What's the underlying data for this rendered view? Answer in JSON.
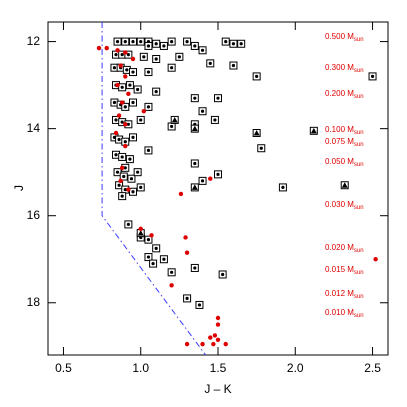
{
  "chart_data": {
    "type": "scatter",
    "xlabel": "J – K",
    "ylabel": "J",
    "xlim": [
      0.4,
      2.6
    ],
    "ylim": [
      11.55,
      19.2
    ],
    "y_inverted": true,
    "xticks": [
      0.5,
      {
        "value": 1.0,
        "label": "1.0"
      },
      1.5,
      {
        "value": 2.0,
        "label": "2.0"
      },
      2.5
    ],
    "yticks": [
      12,
      14,
      16,
      18
    ],
    "grid": false,
    "series": [
      {
        "marker": "square",
        "color": "#000000",
        "x": [
          0.85,
          0.9,
          0.95,
          1.0,
          1.05,
          1.1,
          1.2,
          1.3,
          1.55,
          1.6,
          1.65,
          1.05,
          1.15,
          1.35,
          1.4,
          0.84,
          0.88,
          0.92,
          1.02,
          1.1,
          1.25,
          1.45,
          0.83,
          0.87,
          0.91,
          0.95,
          1.05,
          1.2,
          1.6,
          1.75,
          2.5,
          0.84,
          0.88,
          0.93,
          0.98,
          1.1,
          1.35,
          1.5,
          0.83,
          0.87,
          0.9,
          0.95,
          1.05,
          1.4,
          1.48,
          0.84,
          0.88,
          0.92,
          1.0,
          1.2,
          1.35,
          0.83,
          0.86,
          0.9,
          0.95,
          1.78,
          1.05,
          0.84,
          0.88,
          0.93,
          1.35,
          0.9,
          0.85,
          0.89,
          0.94,
          0.98,
          1.5,
          1.92,
          1.4,
          0.86,
          0.9,
          0.95,
          1.0,
          0.88,
          0.92,
          1.0,
          1.05,
          1.1,
          1.05,
          1.08,
          1.15,
          1.2,
          1.35,
          1.53,
          1.3,
          1.38
        ],
        "y": [
          12.0,
          12.0,
          12.0,
          12.0,
          12.0,
          12.05,
          12.0,
          12.0,
          12.0,
          12.05,
          12.05,
          12.1,
          12.1,
          12.1,
          12.2,
          12.3,
          12.3,
          12.3,
          12.35,
          12.4,
          12.35,
          12.5,
          12.6,
          12.6,
          12.65,
          12.7,
          12.7,
          12.6,
          12.55,
          12.8,
          12.8,
          13.0,
          13.05,
          13.0,
          13.1,
          13.15,
          13.3,
          13.3,
          13.4,
          13.45,
          13.5,
          13.4,
          13.5,
          13.6,
          13.8,
          13.8,
          13.85,
          13.9,
          13.8,
          13.95,
          13.9,
          14.2,
          14.25,
          14.3,
          14.2,
          14.45,
          14.5,
          14.6,
          14.65,
          14.7,
          14.8,
          14.9,
          15.0,
          15.1,
          15.15,
          15.0,
          15.05,
          15.35,
          15.2,
          15.3,
          15.4,
          15.45,
          15.35,
          15.55,
          16.2,
          16.5,
          16.55,
          16.75,
          16.95,
          17.1,
          17.0,
          17.3,
          17.2,
          17.35,
          17.9,
          18.05
        ]
      },
      {
        "marker": "triangle",
        "color": "#000000",
        "x": [
          1.22,
          1.35,
          1.75,
          2.12,
          2.32,
          1.35,
          1.0
        ],
        "y": [
          13.8,
          14.0,
          14.1,
          14.05,
          15.3,
          15.35,
          16.4
        ]
      },
      {
        "marker": "circle",
        "color": "#e00000",
        "x": [
          0.73,
          0.78,
          0.85,
          0.9,
          0.95,
          0.87,
          0.9,
          0.85,
          0.92,
          0.88,
          0.86,
          0.9,
          1.02,
          0.84,
          0.9,
          0.88,
          0.87,
          0.92,
          1.45,
          1.26,
          1.0,
          1.07,
          1.29,
          1.3,
          1.2,
          1.5,
          1.5,
          1.48,
          1.45,
          1.5,
          1.47,
          1.4,
          1.55,
          1.3,
          2.52
        ],
        "y": [
          12.15,
          12.15,
          12.2,
          12.25,
          12.4,
          12.55,
          12.8,
          13.0,
          13.2,
          13.4,
          13.7,
          13.9,
          13.6,
          14.1,
          14.4,
          14.9,
          15.2,
          15.4,
          15.15,
          15.5,
          16.3,
          16.45,
          16.5,
          16.85,
          17.6,
          18.35,
          18.5,
          18.75,
          18.8,
          18.85,
          18.95,
          18.95,
          18.95,
          18.95,
          17.0
        ]
      },
      {
        "marker": "dashdot-line",
        "color": "#3a3aff",
        "x": [
          0.75,
          0.75,
          1.42
        ],
        "y": [
          11.55,
          16.0,
          19.2
        ]
      }
    ],
    "annotations": [
      {
        "text": "0.500 M",
        "sub": "sun"
      },
      {
        "text": "0.300 M",
        "sub": "sun"
      },
      {
        "text": "0.200 M",
        "sub": "sun"
      },
      {
        "text": "0.100 M",
        "sub": "sun"
      },
      {
        "text": "0.075 M",
        "sub": "sun"
      },
      {
        "text": "0.050 M",
        "sub": "sun"
      },
      {
        "text": "0.030 M",
        "sub": "sun"
      },
      {
        "text": "0.020 M",
        "sub": "sun"
      },
      {
        "text": "0.015 M",
        "sub": "sun"
      },
      {
        "text": "0.012 M",
        "sub": "sun"
      },
      {
        "text": "0.010 M",
        "sub": "sun"
      }
    ]
  }
}
